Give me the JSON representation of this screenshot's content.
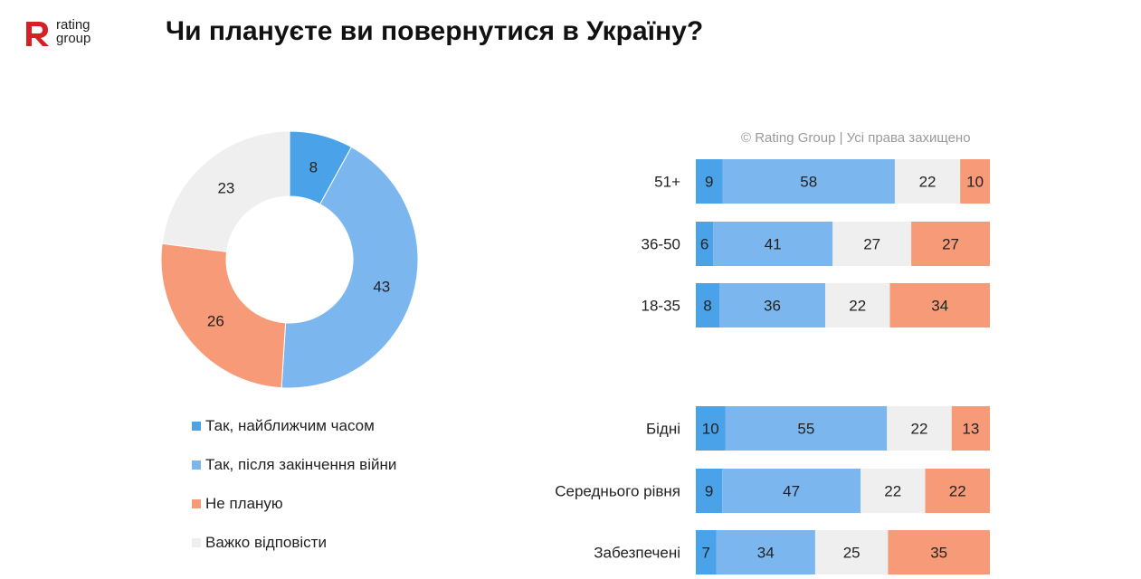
{
  "logo": {
    "line1": "rating",
    "line2": "group",
    "mark": "R",
    "accent": "#d71f26"
  },
  "title": "Чи плануєте ви повернутися в Україну?",
  "copyright": "© Rating Group | Усі права захищено",
  "colors": {
    "soon": "#4aa3e8",
    "after_war": "#7cb6ef",
    "no": "#f79a77",
    "hard": "#efefef"
  },
  "legend": [
    {
      "label": "Так, найближчим часом",
      "color": "#4aa3e8"
    },
    {
      "label": "Так, після закінчення війни",
      "color": "#7cb6ef"
    },
    {
      "label": "Не планую",
      "color": "#f79a77"
    },
    {
      "label": "Важко відповісти",
      "color": "#efefef"
    }
  ],
  "chart_data": [
    {
      "type": "pie",
      "donut": true,
      "labels": [
        "Так, найближчим часом",
        "Так, після закінчення війни",
        "Не планую",
        "Важко відповісти"
      ],
      "values": [
        8,
        43,
        26,
        23
      ],
      "colors": [
        "#4aa3e8",
        "#7cb6ef",
        "#f79a77",
        "#efefef"
      ]
    },
    {
      "type": "bar",
      "orientation": "horizontal",
      "stacked": true,
      "groups": [
        {
          "categories": [
            "51+",
            "36-50",
            "18-35"
          ]
        },
        {
          "categories": [
            "Бідні",
            "Середнього рівня",
            "Забезпечені"
          ]
        }
      ],
      "series": [
        {
          "name": "Так, найближчим часом",
          "color": "#4aa3e8",
          "values": [
            9,
            6,
            8,
            10,
            9,
            7
          ]
        },
        {
          "name": "Так, після закінчення війни",
          "color": "#7cb6ef",
          "values": [
            58,
            41,
            36,
            55,
            47,
            34
          ]
        },
        {
          "name": "Важко відповісти",
          "color": "#efefef",
          "values": [
            22,
            27,
            22,
            22,
            22,
            25
          ]
        },
        {
          "name": "Не планую",
          "color": "#f79a77",
          "values": [
            10,
            27,
            34,
            13,
            22,
            35
          ]
        }
      ]
    }
  ]
}
